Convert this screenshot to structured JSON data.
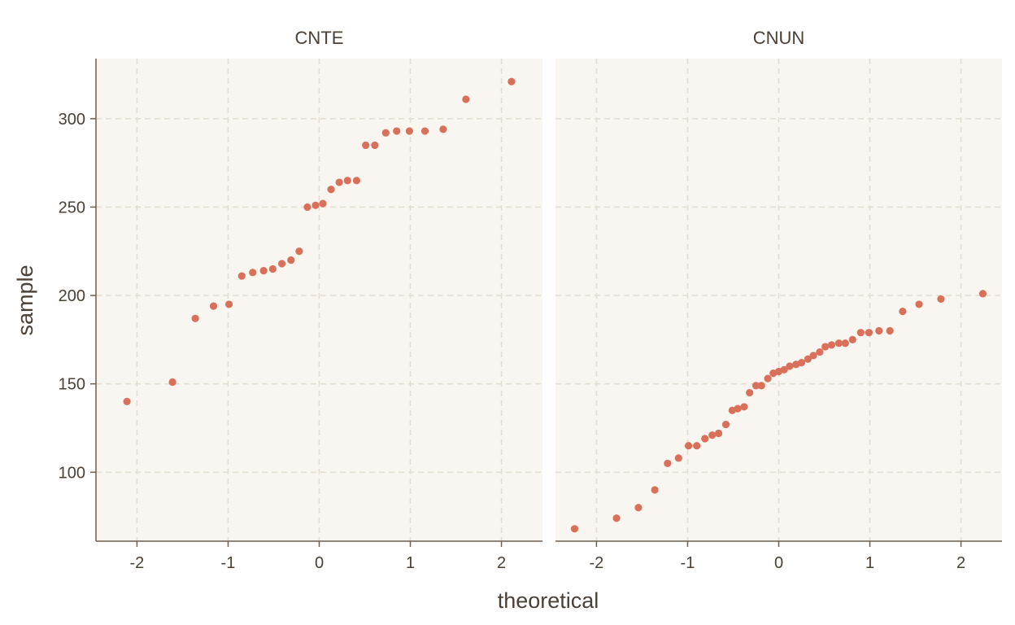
{
  "chart_data": {
    "type": "scatter",
    "xlabel": "theoretical",
    "ylabel": "sample",
    "xlim": [
      -2.45,
      2.45
    ],
    "ylim": [
      61,
      334
    ],
    "x_ticks": [
      -2,
      -1,
      0,
      1,
      2
    ],
    "y_ticks": [
      100,
      150,
      200,
      250,
      300
    ],
    "grid": true,
    "point_color": "#d9705a",
    "panel_background": "#f9f5f0",
    "panels": [
      {
        "title": "CNTE",
        "points": [
          {
            "x": -2.11,
            "y": 140
          },
          {
            "x": -1.61,
            "y": 151
          },
          {
            "x": -1.36,
            "y": 187
          },
          {
            "x": -1.16,
            "y": 194
          },
          {
            "x": -0.99,
            "y": 195
          },
          {
            "x": -0.85,
            "y": 211
          },
          {
            "x": -0.73,
            "y": 213
          },
          {
            "x": -0.61,
            "y": 214
          },
          {
            "x": -0.51,
            "y": 215
          },
          {
            "x": -0.41,
            "y": 218
          },
          {
            "x": -0.31,
            "y": 220
          },
          {
            "x": -0.22,
            "y": 225
          },
          {
            "x": -0.13,
            "y": 250
          },
          {
            "x": -0.04,
            "y": 251
          },
          {
            "x": 0.04,
            "y": 252
          },
          {
            "x": 0.13,
            "y": 260
          },
          {
            "x": 0.22,
            "y": 264
          },
          {
            "x": 0.31,
            "y": 265
          },
          {
            "x": 0.41,
            "y": 265
          },
          {
            "x": 0.51,
            "y": 285
          },
          {
            "x": 0.61,
            "y": 285
          },
          {
            "x": 0.73,
            "y": 292
          },
          {
            "x": 0.85,
            "y": 293
          },
          {
            "x": 0.99,
            "y": 293
          },
          {
            "x": 1.16,
            "y": 293
          },
          {
            "x": 1.36,
            "y": 294
          },
          {
            "x": 1.61,
            "y": 311
          },
          {
            "x": 2.11,
            "y": 321
          }
        ]
      },
      {
        "title": "CNUN",
        "points": [
          {
            "x": -2.24,
            "y": 68
          },
          {
            "x": -1.78,
            "y": 74
          },
          {
            "x": -1.54,
            "y": 80
          },
          {
            "x": -1.36,
            "y": 90
          },
          {
            "x": -1.22,
            "y": 105
          },
          {
            "x": -1.1,
            "y": 108
          },
          {
            "x": -0.99,
            "y": 115
          },
          {
            "x": -0.9,
            "y": 115
          },
          {
            "x": -0.81,
            "y": 119
          },
          {
            "x": -0.73,
            "y": 121
          },
          {
            "x": -0.66,
            "y": 122
          },
          {
            "x": -0.58,
            "y": 127
          },
          {
            "x": -0.51,
            "y": 135
          },
          {
            "x": -0.45,
            "y": 136
          },
          {
            "x": -0.38,
            "y": 137
          },
          {
            "x": -0.32,
            "y": 145
          },
          {
            "x": -0.25,
            "y": 149
          },
          {
            "x": -0.19,
            "y": 149
          },
          {
            "x": -0.12,
            "y": 153
          },
          {
            "x": -0.06,
            "y": 156
          },
          {
            "x": 0.0,
            "y": 157
          },
          {
            "x": 0.06,
            "y": 158
          },
          {
            "x": 0.12,
            "y": 160
          },
          {
            "x": 0.19,
            "y": 161
          },
          {
            "x": 0.25,
            "y": 162
          },
          {
            "x": 0.32,
            "y": 164
          },
          {
            "x": 0.38,
            "y": 166
          },
          {
            "x": 0.45,
            "y": 168
          },
          {
            "x": 0.51,
            "y": 171
          },
          {
            "x": 0.58,
            "y": 172
          },
          {
            "x": 0.66,
            "y": 173
          },
          {
            "x": 0.73,
            "y": 173
          },
          {
            "x": 0.81,
            "y": 175
          },
          {
            "x": 0.9,
            "y": 179
          },
          {
            "x": 0.99,
            "y": 179
          },
          {
            "x": 1.1,
            "y": 180
          },
          {
            "x": 1.22,
            "y": 180
          },
          {
            "x": 1.36,
            "y": 191
          },
          {
            "x": 1.54,
            "y": 195
          },
          {
            "x": 1.78,
            "y": 198
          },
          {
            "x": 2.24,
            "y": 201
          }
        ]
      }
    ]
  }
}
